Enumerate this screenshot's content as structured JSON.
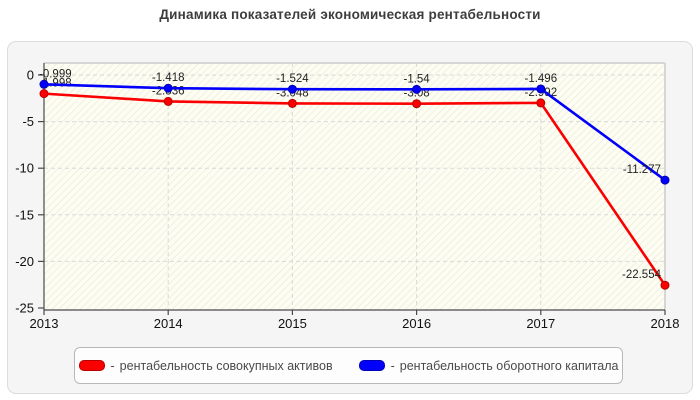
{
  "title": "Динамика показателей экономическая рентабельности",
  "legend": {
    "dash": "-"
  },
  "colors": {
    "plot_bg": "#fdfdf2",
    "hatch": "#e7e7dc",
    "grid": "#d9d9d9",
    "plot_border": "#d6d6d6",
    "axis": "#4a4a4a",
    "tick_label": "#111111",
    "value_label": "#1f1f1f",
    "chart_box_bg": "#f5f5f5",
    "chart_box_border": "#dcdcdc"
  },
  "chart_data": {
    "type": "line",
    "title": "Динамика показателей экономическая рентабельности",
    "x": [
      2013,
      2014,
      2015,
      2016,
      2017,
      2018
    ],
    "xlabel": "",
    "ylabel": "",
    "ylim": [
      -25,
      0
    ],
    "yticks": [
      0,
      -5,
      -10,
      -15,
      -20,
      -25
    ],
    "grid": true,
    "grid_style": "dashed",
    "legend_position": "bottom",
    "point_labels": true,
    "series": [
      {
        "name": "рентабельность совокупных активов",
        "color": "#fb0000",
        "marker_edge": "#b30000",
        "values": [
          -1.998,
          -2.836,
          -3.048,
          -3.08,
          -2.992,
          -22.554
        ]
      },
      {
        "name": "рентабельность оборотного капитала",
        "color": "#0000fb",
        "marker_edge": "#0000b3",
        "values": [
          -0.999,
          -1.418,
          -1.524,
          -1.54,
          -1.496,
          -11.277
        ]
      }
    ]
  }
}
